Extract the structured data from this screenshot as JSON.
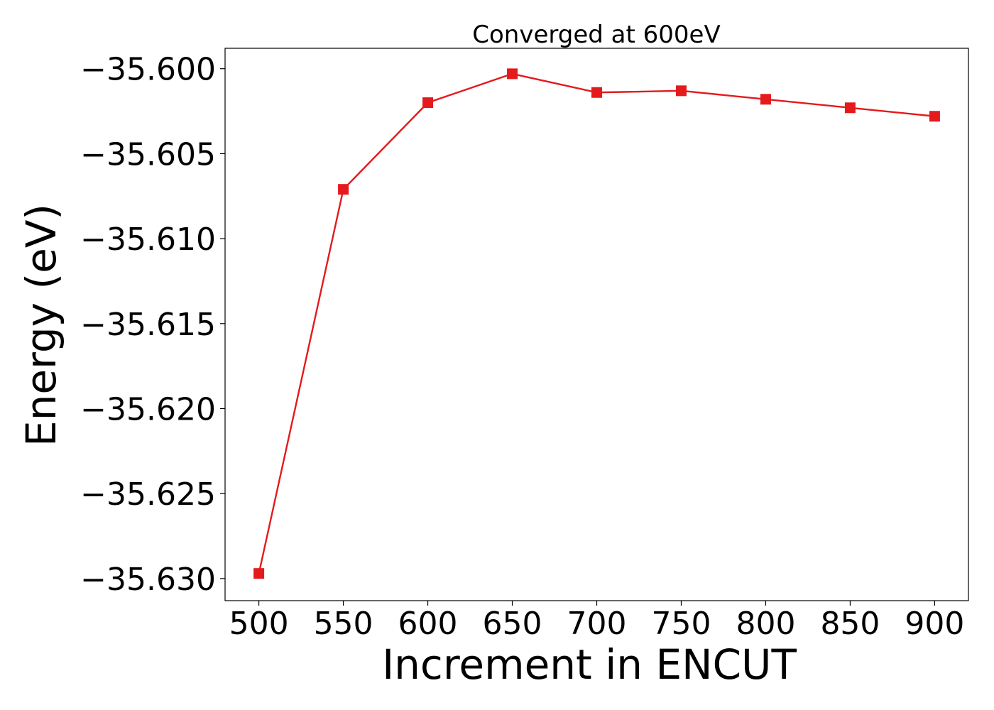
{
  "chart_data": {
    "type": "line",
    "title": "Converged at 600eV",
    "xlabel": "Increment in ENCUT",
    "ylabel": "Energy (eV)",
    "x": [
      500,
      550,
      600,
      650,
      700,
      750,
      800,
      850,
      900
    ],
    "series": [
      {
        "values": [
          -35.6297,
          -35.6071,
          -35.602,
          -35.6003,
          -35.6014,
          -35.6013,
          -35.6018,
          -35.6023,
          -35.6028
        ],
        "color": "#e41a1c",
        "marker": "square"
      }
    ],
    "xlim": [
      480,
      920
    ],
    "ylim": [
      -35.6313,
      -35.5988
    ],
    "xticks": [
      500,
      550,
      600,
      650,
      700,
      750,
      800,
      850,
      900
    ],
    "yticks": [
      -35.6,
      -35.605,
      -35.61,
      -35.615,
      -35.62,
      -35.625,
      -35.63
    ],
    "ytick_labels": [
      "−35.600",
      "−35.605",
      "−35.610",
      "−35.615",
      "−35.620",
      "−35.625",
      "−35.630"
    ],
    "grid": false,
    "legend": "none"
  }
}
